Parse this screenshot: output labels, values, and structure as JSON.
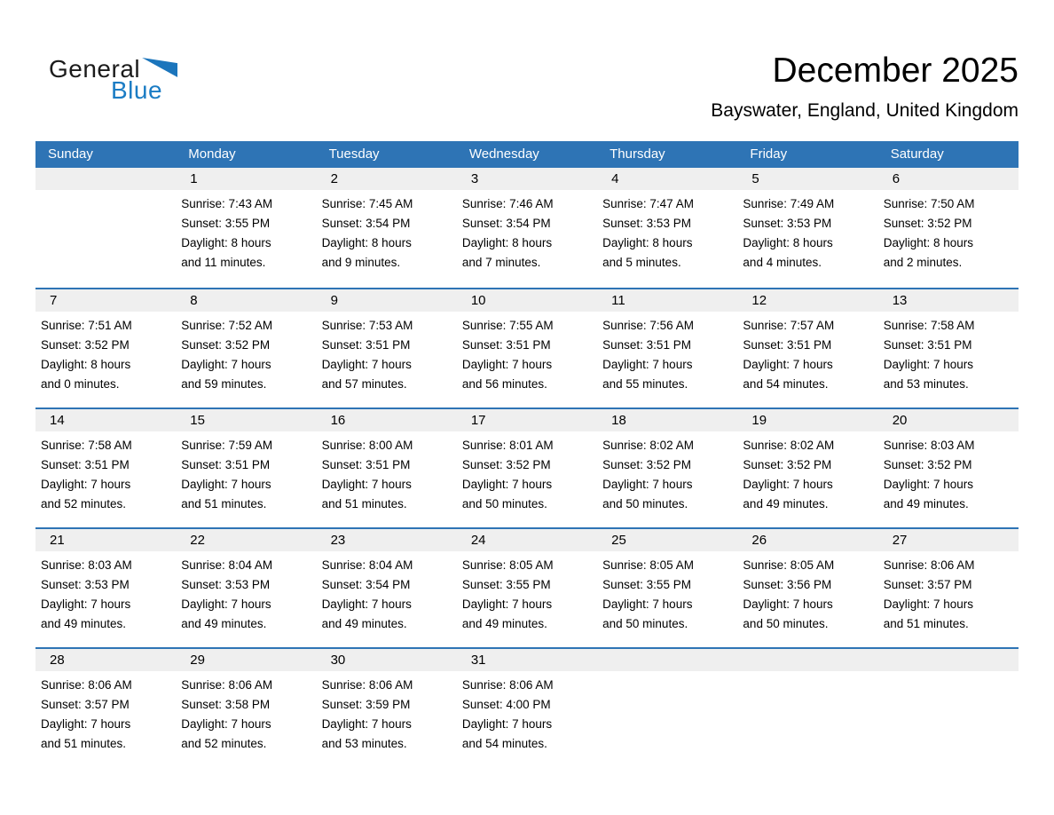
{
  "logo": {
    "text_black": "General",
    "text_blue": "Blue"
  },
  "header": {
    "title": "December 2025",
    "subtitle": "Bayswater, England, United Kingdom"
  },
  "weekday_headers": [
    "Sunday",
    "Monday",
    "Tuesday",
    "Wednesday",
    "Thursday",
    "Friday",
    "Saturday"
  ],
  "weeks": [
    [
      {
        "day": ""
      },
      {
        "day": "1",
        "sunrise": "Sunrise: 7:43 AM",
        "sunset": "Sunset: 3:55 PM",
        "daylight_line1": "Daylight: 8 hours",
        "daylight_line2": "and 11 minutes."
      },
      {
        "day": "2",
        "sunrise": "Sunrise: 7:45 AM",
        "sunset": "Sunset: 3:54 PM",
        "daylight_line1": "Daylight: 8 hours",
        "daylight_line2": "and 9 minutes."
      },
      {
        "day": "3",
        "sunrise": "Sunrise: 7:46 AM",
        "sunset": "Sunset: 3:54 PM",
        "daylight_line1": "Daylight: 8 hours",
        "daylight_line2": "and 7 minutes."
      },
      {
        "day": "4",
        "sunrise": "Sunrise: 7:47 AM",
        "sunset": "Sunset: 3:53 PM",
        "daylight_line1": "Daylight: 8 hours",
        "daylight_line2": "and 5 minutes."
      },
      {
        "day": "5",
        "sunrise": "Sunrise: 7:49 AM",
        "sunset": "Sunset: 3:53 PM",
        "daylight_line1": "Daylight: 8 hours",
        "daylight_line2": "and 4 minutes."
      },
      {
        "day": "6",
        "sunrise": "Sunrise: 7:50 AM",
        "sunset": "Sunset: 3:52 PM",
        "daylight_line1": "Daylight: 8 hours",
        "daylight_line2": "and 2 minutes."
      }
    ],
    [
      {
        "day": "7",
        "sunrise": "Sunrise: 7:51 AM",
        "sunset": "Sunset: 3:52 PM",
        "daylight_line1": "Daylight: 8 hours",
        "daylight_line2": "and 0 minutes."
      },
      {
        "day": "8",
        "sunrise": "Sunrise: 7:52 AM",
        "sunset": "Sunset: 3:52 PM",
        "daylight_line1": "Daylight: 7 hours",
        "daylight_line2": "and 59 minutes."
      },
      {
        "day": "9",
        "sunrise": "Sunrise: 7:53 AM",
        "sunset": "Sunset: 3:51 PM",
        "daylight_line1": "Daylight: 7 hours",
        "daylight_line2": "and 57 minutes."
      },
      {
        "day": "10",
        "sunrise": "Sunrise: 7:55 AM",
        "sunset": "Sunset: 3:51 PM",
        "daylight_line1": "Daylight: 7 hours",
        "daylight_line2": "and 56 minutes."
      },
      {
        "day": "11",
        "sunrise": "Sunrise: 7:56 AM",
        "sunset": "Sunset: 3:51 PM",
        "daylight_line1": "Daylight: 7 hours",
        "daylight_line2": "and 55 minutes."
      },
      {
        "day": "12",
        "sunrise": "Sunrise: 7:57 AM",
        "sunset": "Sunset: 3:51 PM",
        "daylight_line1": "Daylight: 7 hours",
        "daylight_line2": "and 54 minutes."
      },
      {
        "day": "13",
        "sunrise": "Sunrise: 7:58 AM",
        "sunset": "Sunset: 3:51 PM",
        "daylight_line1": "Daylight: 7 hours",
        "daylight_line2": "and 53 minutes."
      }
    ],
    [
      {
        "day": "14",
        "sunrise": "Sunrise: 7:58 AM",
        "sunset": "Sunset: 3:51 PM",
        "daylight_line1": "Daylight: 7 hours",
        "daylight_line2": "and 52 minutes."
      },
      {
        "day": "15",
        "sunrise": "Sunrise: 7:59 AM",
        "sunset": "Sunset: 3:51 PM",
        "daylight_line1": "Daylight: 7 hours",
        "daylight_line2": "and 51 minutes."
      },
      {
        "day": "16",
        "sunrise": "Sunrise: 8:00 AM",
        "sunset": "Sunset: 3:51 PM",
        "daylight_line1": "Daylight: 7 hours",
        "daylight_line2": "and 51 minutes."
      },
      {
        "day": "17",
        "sunrise": "Sunrise: 8:01 AM",
        "sunset": "Sunset: 3:52 PM",
        "daylight_line1": "Daylight: 7 hours",
        "daylight_line2": "and 50 minutes."
      },
      {
        "day": "18",
        "sunrise": "Sunrise: 8:02 AM",
        "sunset": "Sunset: 3:52 PM",
        "daylight_line1": "Daylight: 7 hours",
        "daylight_line2": "and 50 minutes."
      },
      {
        "day": "19",
        "sunrise": "Sunrise: 8:02 AM",
        "sunset": "Sunset: 3:52 PM",
        "daylight_line1": "Daylight: 7 hours",
        "daylight_line2": "and 49 minutes."
      },
      {
        "day": "20",
        "sunrise": "Sunrise: 8:03 AM",
        "sunset": "Sunset: 3:52 PM",
        "daylight_line1": "Daylight: 7 hours",
        "daylight_line2": "and 49 minutes."
      }
    ],
    [
      {
        "day": "21",
        "sunrise": "Sunrise: 8:03 AM",
        "sunset": "Sunset: 3:53 PM",
        "daylight_line1": "Daylight: 7 hours",
        "daylight_line2": "and 49 minutes."
      },
      {
        "day": "22",
        "sunrise": "Sunrise: 8:04 AM",
        "sunset": "Sunset: 3:53 PM",
        "daylight_line1": "Daylight: 7 hours",
        "daylight_line2": "and 49 minutes."
      },
      {
        "day": "23",
        "sunrise": "Sunrise: 8:04 AM",
        "sunset": "Sunset: 3:54 PM",
        "daylight_line1": "Daylight: 7 hours",
        "daylight_line2": "and 49 minutes."
      },
      {
        "day": "24",
        "sunrise": "Sunrise: 8:05 AM",
        "sunset": "Sunset: 3:55 PM",
        "daylight_line1": "Daylight: 7 hours",
        "daylight_line2": "and 49 minutes."
      },
      {
        "day": "25",
        "sunrise": "Sunrise: 8:05 AM",
        "sunset": "Sunset: 3:55 PM",
        "daylight_line1": "Daylight: 7 hours",
        "daylight_line2": "and 50 minutes."
      },
      {
        "day": "26",
        "sunrise": "Sunrise: 8:05 AM",
        "sunset": "Sunset: 3:56 PM",
        "daylight_line1": "Daylight: 7 hours",
        "daylight_line2": "and 50 minutes."
      },
      {
        "day": "27",
        "sunrise": "Sunrise: 8:06 AM",
        "sunset": "Sunset: 3:57 PM",
        "daylight_line1": "Daylight: 7 hours",
        "daylight_line2": "and 51 minutes."
      }
    ],
    [
      {
        "day": "28",
        "sunrise": "Sunrise: 8:06 AM",
        "sunset": "Sunset: 3:57 PM",
        "daylight_line1": "Daylight: 7 hours",
        "daylight_line2": "and 51 minutes."
      },
      {
        "day": "29",
        "sunrise": "Sunrise: 8:06 AM",
        "sunset": "Sunset: 3:58 PM",
        "daylight_line1": "Daylight: 7 hours",
        "daylight_line2": "and 52 minutes."
      },
      {
        "day": "30",
        "sunrise": "Sunrise: 8:06 AM",
        "sunset": "Sunset: 3:59 PM",
        "daylight_line1": "Daylight: 7 hours",
        "daylight_line2": "and 53 minutes."
      },
      {
        "day": "31",
        "sunrise": "Sunrise: 8:06 AM",
        "sunset": "Sunset: 4:00 PM",
        "daylight_line1": "Daylight: 7 hours",
        "daylight_line2": "and 54 minutes."
      },
      {
        "day": ""
      },
      {
        "day": ""
      },
      {
        "day": ""
      }
    ]
  ],
  "colors": {
    "header_blue": "#2e74b5",
    "week_divider_blue": "#2e74b5",
    "day_strip_gray": "#efefef",
    "logo_blue": "#1b7cc4",
    "logo_triangle_blue": "#1b75bc",
    "text": "#000000"
  }
}
